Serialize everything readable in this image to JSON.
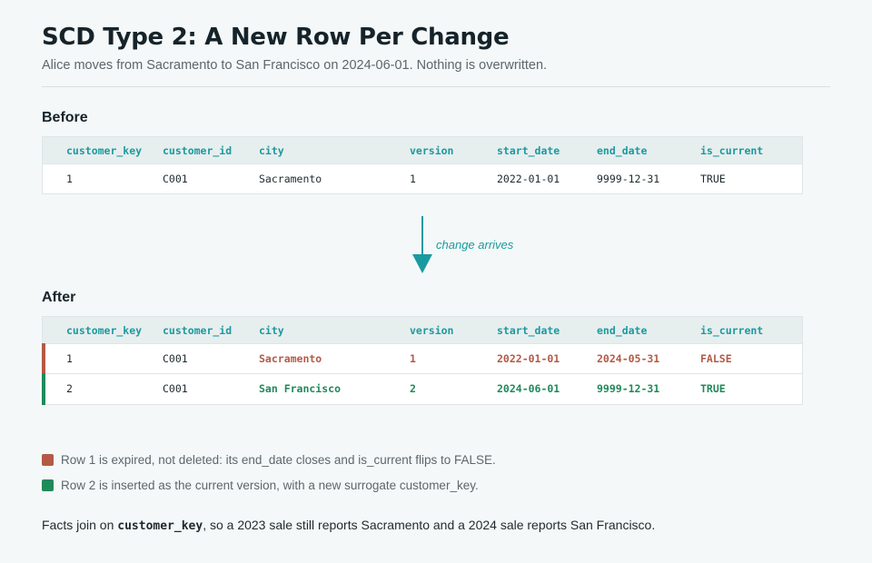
{
  "title": "SCD Type 2: A New Row Per Change",
  "subtitle": "Alice moves from Sacramento to San Francisco on 2024-06-01. Nothing is overwritten.",
  "columns": [
    "customer_key",
    "customer_id",
    "city",
    "version",
    "start_date",
    "end_date",
    "is_current"
  ],
  "before": {
    "label": "Before",
    "rows": [
      {
        "customer_key": "1",
        "customer_id": "C001",
        "city": "Sacramento",
        "version": "1",
        "start_date": "2022-01-01",
        "end_date": "9999-12-31",
        "is_current": "TRUE"
      }
    ]
  },
  "arrow": {
    "label": "change arrives",
    "color": "#1a9aa0"
  },
  "after": {
    "label": "After",
    "rows": [
      {
        "customer_key": "1",
        "customer_id": "C001",
        "city": "Sacramento",
        "version": "1",
        "start_date": "2022-01-01",
        "end_date": "2024-05-31",
        "is_current": "FALSE",
        "status": "expired"
      },
      {
        "customer_key": "2",
        "customer_id": "C001",
        "city": "San Francisco",
        "version": "2",
        "start_date": "2024-06-01",
        "end_date": "9999-12-31",
        "is_current": "TRUE",
        "status": "current"
      }
    ]
  },
  "legend": [
    {
      "text": "Row 1 is expired, not deleted: its end_date closes and is_current flips to FALSE.",
      "color": "#b35a46"
    },
    {
      "text": "Row 2 is inserted as the current version, with a new surrogate customer_key.",
      "color": "#1f8a5a"
    }
  ],
  "footer": {
    "pre": "Facts join on ",
    "code": "customer_key",
    "post": ", so a 2023 sale still reports Sacramento and a 2024 sale reports San Francisco."
  }
}
